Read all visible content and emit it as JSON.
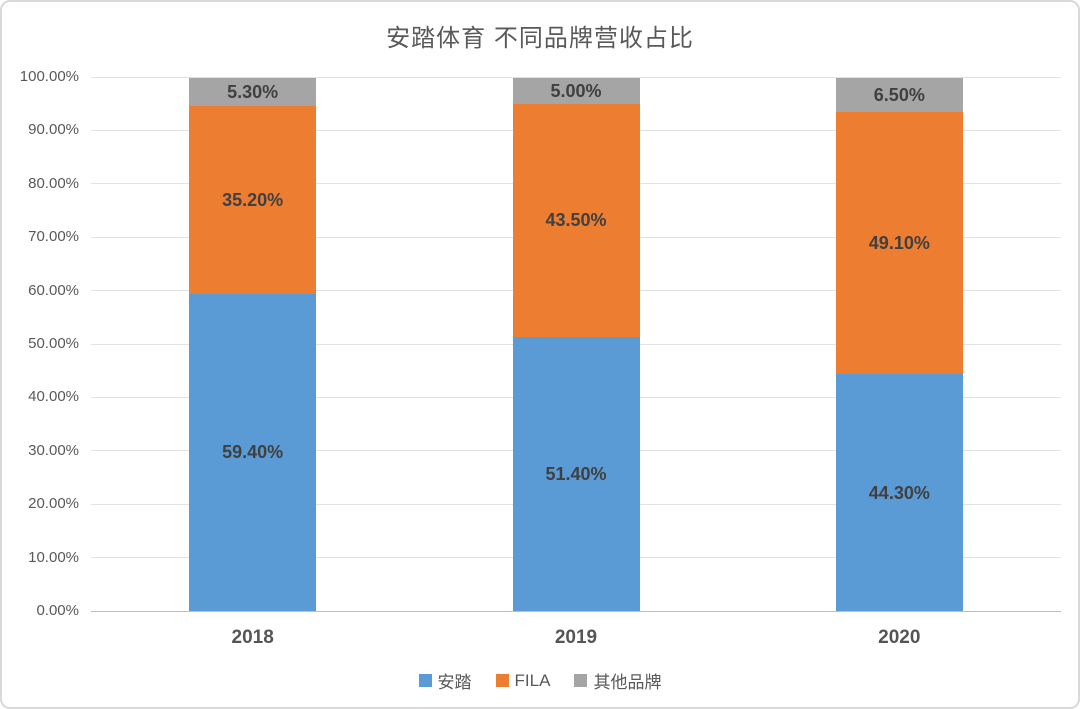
{
  "title": "安踏体育 不同品牌营收占比",
  "chart_data": {
    "type": "bar",
    "stacked": true,
    "percent_stacked": true,
    "title": "安踏体育 不同品牌营收占比",
    "categories": [
      "2018",
      "2019",
      "2020"
    ],
    "series": [
      {
        "name": "安踏",
        "color": "#5B9BD5",
        "values": [
          59.4,
          51.4,
          44.3
        ],
        "labels": [
          "59.40%",
          "51.40%",
          "44.30%"
        ]
      },
      {
        "name": "FILA",
        "color": "#ED7D31",
        "values": [
          35.2,
          43.5,
          49.1
        ],
        "labels": [
          "35.20%",
          "43.50%",
          "49.10%"
        ]
      },
      {
        "name": "其他品牌",
        "color": "#A5A5A5",
        "values": [
          5.3,
          5.0,
          6.5
        ],
        "labels": [
          "5.30%",
          "5.00%",
          "6.50%"
        ]
      }
    ],
    "xlabel": "",
    "ylabel": "",
    "ylim": [
      0,
      100
    ],
    "y_ticks": [
      "0.00%",
      "10.00%",
      "20.00%",
      "30.00%",
      "40.00%",
      "50.00%",
      "60.00%",
      "70.00%",
      "80.00%",
      "90.00%",
      "100.00%"
    ],
    "grid": "horizontal",
    "legend_position": "bottom",
    "data_label_color": "#404040",
    "axis_label_color": "#595959",
    "gridline_color": "#e2e2e2",
    "axis_line_color": "#bfbfbf"
  }
}
